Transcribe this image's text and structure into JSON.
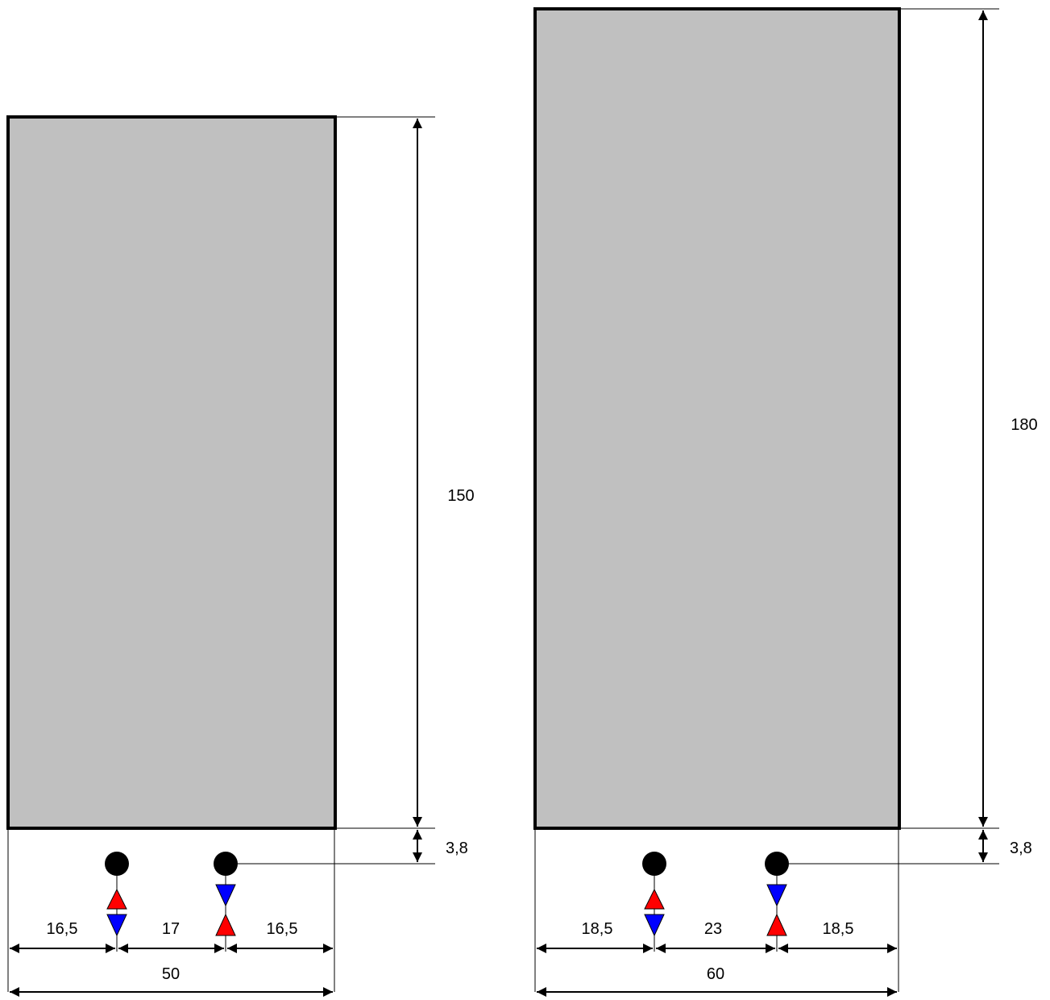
{
  "colors": {
    "panel_fill": "#c0c0c0",
    "outline": "#000000",
    "flow_supply": "#ff0000",
    "flow_return": "#0000ff"
  },
  "left": {
    "height_label": "150",
    "connection_offset_label": "3,8",
    "spacing_left_label": "16,5",
    "spacing_middle_label": "17",
    "spacing_right_label": "16,5",
    "total_width_label": "50"
  },
  "right": {
    "height_label": "180",
    "connection_offset_label": "3,8",
    "spacing_left_label": "18,5",
    "spacing_middle_label": "23",
    "spacing_right_label": "18,5",
    "total_width_label": "60"
  }
}
